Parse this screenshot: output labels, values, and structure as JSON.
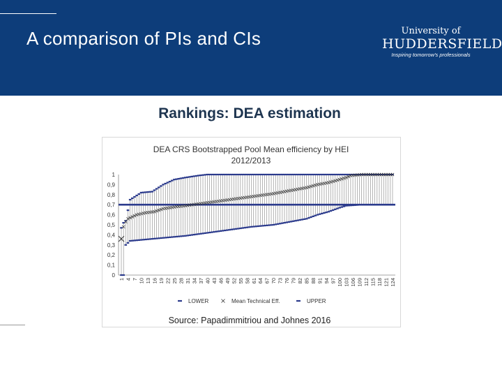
{
  "slide": {
    "title": "A comparison of PIs and CIs",
    "subtitle": "Rankings: DEA estimation",
    "source": "Source: Papadimmitriou and Johnes 2016"
  },
  "logo": {
    "line1": "University of",
    "line2": "HUDDERSFIELD",
    "tagline": "Inspiring tomorrow's professionals"
  },
  "colors": {
    "header_bg": "#0d3d7a",
    "series_color": "#2b3a8c",
    "marker_color": "#333333"
  },
  "chart_data": {
    "type": "line",
    "title": "DEA CRS Bootstrapped Pool Mean efficiency by HEI",
    "title_line2": "2012/2013",
    "xlabel": "",
    "ylabel": "",
    "x_count": 124,
    "ylim": [
      0,
      1
    ],
    "ytick_labels": [
      "0",
      "0,1",
      "0,2",
      "0,3",
      "0,4",
      "0,5",
      "0,6",
      "0,7",
      "0,8",
      "0,9",
      "1"
    ],
    "xtick_labels": [
      "1",
      "4",
      "7",
      "10",
      "13",
      "16",
      "19",
      "22",
      "25",
      "28",
      "31",
      "34",
      "37",
      "40",
      "43",
      "46",
      "49",
      "52",
      "55",
      "58",
      "61",
      "64",
      "67",
      "70",
      "73",
      "76",
      "79",
      "82",
      "85",
      "88",
      "91",
      "94",
      "97",
      "100",
      "103",
      "106",
      "109",
      "112",
      "115",
      "118",
      "121",
      "124"
    ],
    "reference_line": {
      "value": 0.7
    },
    "legend": {
      "position": "bottom",
      "labels": [
        "LOWER",
        "Mean Technical Eff.",
        "UPPER"
      ]
    },
    "series": [
      {
        "name": "LOWER",
        "style": "dash-marker",
        "keypoints": [
          [
            1,
            0
          ],
          [
            2,
            0
          ],
          [
            3,
            0.3
          ],
          [
            5,
            0.34
          ],
          [
            10,
            0.35
          ],
          [
            15,
            0.36
          ],
          [
            20,
            0.37
          ],
          [
            30,
            0.39
          ],
          [
            40,
            0.42
          ],
          [
            50,
            0.45
          ],
          [
            60,
            0.48
          ],
          [
            70,
            0.5
          ],
          [
            75,
            0.52
          ],
          [
            80,
            0.54
          ],
          [
            85,
            0.56
          ],
          [
            90,
            0.6
          ],
          [
            95,
            0.63
          ],
          [
            100,
            0.67
          ],
          [
            103,
            0.69
          ],
          [
            110,
            0.7
          ],
          [
            124,
            0.7
          ]
        ]
      },
      {
        "name": "Mean Technical Eff.",
        "style": "x-marker",
        "keypoints": [
          [
            1,
            0.36
          ],
          [
            2,
            0.48
          ],
          [
            3,
            0.53
          ],
          [
            4,
            0.56
          ],
          [
            6,
            0.58
          ],
          [
            8,
            0.6
          ],
          [
            12,
            0.62
          ],
          [
            16,
            0.63
          ],
          [
            20,
            0.66
          ],
          [
            26,
            0.68
          ],
          [
            30,
            0.69
          ],
          [
            40,
            0.72
          ],
          [
            50,
            0.75
          ],
          [
            60,
            0.78
          ],
          [
            70,
            0.81
          ],
          [
            75,
            0.83
          ],
          [
            80,
            0.85
          ],
          [
            85,
            0.87
          ],
          [
            90,
            0.9
          ],
          [
            95,
            0.92
          ],
          [
            100,
            0.95
          ],
          [
            103,
            0.97
          ],
          [
            105,
            0.99
          ],
          [
            110,
            1
          ],
          [
            124,
            1
          ]
        ]
      },
      {
        "name": "UPPER",
        "style": "dash-marker",
        "keypoints": [
          [
            1,
            0.47
          ],
          [
            2,
            0.52
          ],
          [
            3,
            0.54
          ],
          [
            5,
            0.75
          ],
          [
            10,
            0.82
          ],
          [
            15,
            0.83
          ],
          [
            20,
            0.9
          ],
          [
            25,
            0.95
          ],
          [
            30,
            0.97
          ],
          [
            36,
            0.99
          ],
          [
            40,
            1
          ],
          [
            124,
            1
          ]
        ]
      }
    ]
  }
}
